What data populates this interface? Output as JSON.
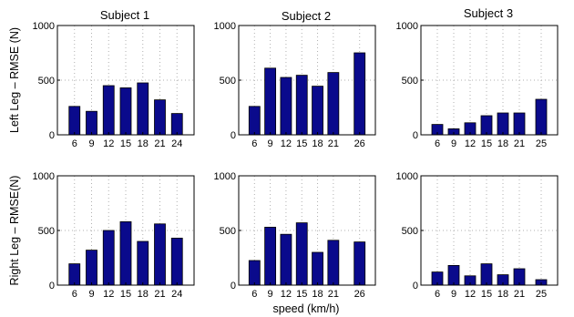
{
  "figure": {
    "xlabel": "speed (km/h)",
    "row_labels": [
      "Left Leg – RMSE (N)",
      "Right Leg – RMSE(N)"
    ],
    "column_titles": [
      "Subject 1",
      "Subject 2",
      "Subject 3"
    ]
  },
  "colors": {
    "bar_fill": "#0a0a8c",
    "bar_stroke": "#000000",
    "grid": "#b0b0b0",
    "axis": "#000000"
  },
  "chart_data": [
    {
      "type": "bar",
      "title": "Subject 1",
      "ylabel": "Left Leg – RMSE (N)",
      "xlabel": "",
      "x": [
        6,
        9,
        12,
        15,
        18,
        21,
        24
      ],
      "tick_labels": [
        "6",
        "9",
        "12",
        "15",
        "18",
        "21",
        "24"
      ],
      "values": [
        260,
        215,
        450,
        430,
        475,
        320,
        195
      ],
      "xlim": [
        3,
        27
      ],
      "ylim": [
        0,
        1000
      ],
      "yticks": [
        0,
        500,
        1000
      ],
      "grid": true
    },
    {
      "type": "bar",
      "title": "Subject 2",
      "ylabel": "",
      "xlabel": "",
      "x": [
        6,
        9,
        12,
        15,
        18,
        21,
        26
      ],
      "tick_labels": [
        "6",
        "9",
        "12",
        "15",
        "18",
        "21",
        "26"
      ],
      "values": [
        260,
        610,
        525,
        545,
        445,
        570,
        750
      ],
      "xlim": [
        3,
        29
      ],
      "ylim": [
        0,
        1000
      ],
      "yticks": [
        0,
        500,
        1000
      ],
      "grid": true
    },
    {
      "type": "bar",
      "title": "Subject 3",
      "ylabel": "",
      "xlabel": "",
      "x": [
        6,
        9,
        12,
        15,
        18,
        21,
        25
      ],
      "tick_labels": [
        "6",
        "9",
        "12",
        "15",
        "18",
        "21",
        "25"
      ],
      "values": [
        95,
        55,
        110,
        175,
        200,
        200,
        325
      ],
      "xlim": [
        3,
        28
      ],
      "ylim": [
        0,
        1000
      ],
      "yticks": [
        0,
        500,
        1000
      ],
      "grid": true
    },
    {
      "type": "bar",
      "title": "",
      "ylabel": "Right Leg – RMSE(N)",
      "xlabel": "",
      "x": [
        6,
        9,
        12,
        15,
        18,
        21,
        24
      ],
      "tick_labels": [
        "6",
        "9",
        "12",
        "15",
        "18",
        "21",
        "24"
      ],
      "values": [
        195,
        320,
        500,
        580,
        400,
        560,
        430
      ],
      "xlim": [
        3,
        27
      ],
      "ylim": [
        0,
        1000
      ],
      "yticks": [
        0,
        500,
        1000
      ],
      "grid": true
    },
    {
      "type": "bar",
      "title": "",
      "ylabel": "",
      "xlabel": "speed (km/h)",
      "x": [
        6,
        9,
        12,
        15,
        18,
        21,
        26
      ],
      "tick_labels": [
        "6",
        "9",
        "12",
        "15",
        "18",
        "21",
        "26"
      ],
      "values": [
        225,
        530,
        465,
        570,
        300,
        410,
        395
      ],
      "xlim": [
        3,
        29
      ],
      "ylim": [
        0,
        1000
      ],
      "yticks": [
        0,
        500,
        1000
      ],
      "grid": true
    },
    {
      "type": "bar",
      "title": "",
      "ylabel": "",
      "xlabel": "",
      "x": [
        6,
        9,
        12,
        15,
        18,
        21,
        25
      ],
      "tick_labels": [
        "6",
        "9",
        "12",
        "15",
        "18",
        "21",
        "25"
      ],
      "values": [
        120,
        180,
        85,
        195,
        95,
        150,
        50
      ],
      "xlim": [
        3,
        28
      ],
      "ylim": [
        0,
        1000
      ],
      "yticks": [
        0,
        500,
        1000
      ],
      "grid": true
    }
  ]
}
